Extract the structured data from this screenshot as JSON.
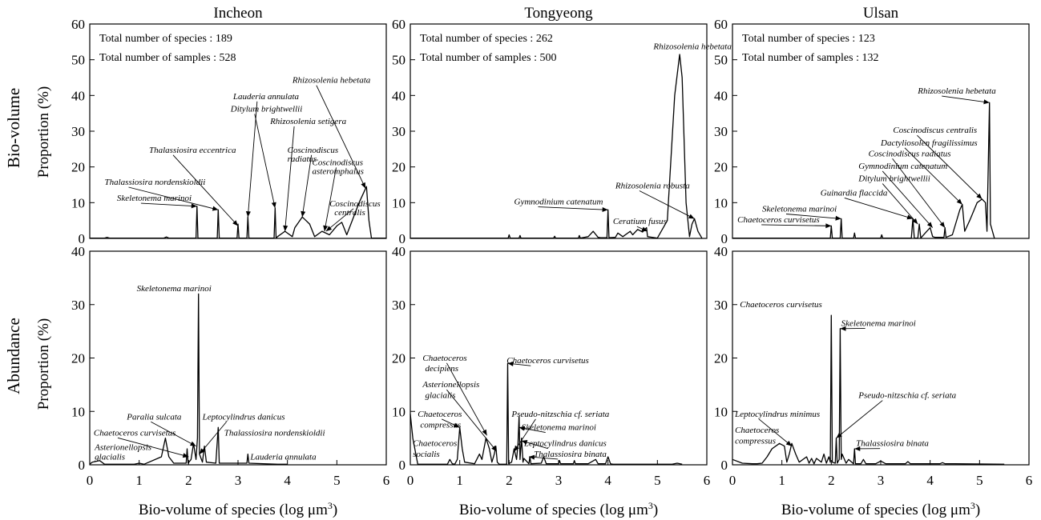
{
  "figure": {
    "row_labels": [
      "Bio-volume",
      "Abundance"
    ],
    "ylabel": "Proportion (%)",
    "xlabel_prefix": "Bio-volume of species (log μm",
    "xlabel_sup": "3",
    "xlabel_suffix": ")"
  },
  "chart_data": [
    {
      "type": "line",
      "station": "Incheon",
      "row": "Bio-volume",
      "xlim": [
        0,
        6
      ],
      "ylim": [
        0,
        60
      ],
      "xticks": [
        0,
        1,
        2,
        3,
        4,
        5,
        6
      ],
      "yticks": [
        0,
        10,
        20,
        30,
        40,
        50,
        60
      ],
      "info": [
        "Total number of species : 189",
        "Total number of samples : 528"
      ],
      "series": [
        {
          "x": [
            0,
            0.3,
            0.35,
            0.4,
            1.5,
            1.55,
            1.6,
            2.15,
            2.17,
            2.19,
            2.58,
            2.6,
            2.62,
            2.98,
            3.0,
            3.02,
            3.18,
            3.2,
            3.22,
            3.73,
            3.75,
            3.77,
            3.8,
            3.95,
            4.1,
            4.15,
            4.3,
            4.45,
            4.55,
            4.7,
            4.85,
            5.0,
            5.1,
            5.2,
            5.45,
            5.6,
            5.65,
            5.7,
            6.0
          ],
          "y": [
            0.1,
            0.1,
            0.3,
            0.1,
            0.1,
            0.4,
            0.1,
            0.1,
            9,
            0.1,
            0.1,
            8,
            0.1,
            0.1,
            4,
            0.1,
            0.1,
            6,
            0.1,
            0.1,
            8.5,
            0.1,
            0.5,
            2,
            0.5,
            3,
            6,
            4,
            0.5,
            2,
            1,
            3.5,
            4.5,
            1,
            10,
            14.5,
            5,
            0.1,
            0.1
          ]
        }
      ],
      "annotations": [
        {
          "text": "Skeletonema marinoi",
          "x": 0.55,
          "y": 10.5,
          "ax": 2.17,
          "ay": 9
        },
        {
          "text": "Thalassiosira nordenskioldii",
          "x": 0.3,
          "y": 15,
          "ax": 2.6,
          "ay": 8
        },
        {
          "text": "Thalassiosira eccentrica",
          "x": 1.2,
          "y": 24,
          "ax": 3.0,
          "ay": 3.5
        },
        {
          "text": "Lauderia annulata",
          "x": 2.9,
          "y": 39,
          "ax": 3.2,
          "ay": 6
        },
        {
          "text": "Ditylum brightwellii",
          "x": 2.85,
          "y": 35.5,
          "ax": 3.75,
          "ay": 8.5
        },
        {
          "text": "Rhizosolenia setigera",
          "x": 3.65,
          "y": 32,
          "ax": 3.95,
          "ay": 2
        },
        {
          "text": "Coscinodiscus",
          "x": 4.0,
          "y": 24,
          "ax": 4.3,
          "ay": 6
        },
        {
          "text": "radiatus",
          "x": 4.0,
          "y": 21.5
        },
        {
          "text": "Coscinodiscus",
          "x": 4.5,
          "y": 20.5,
          "ax": 4.75,
          "ay": 2
        },
        {
          "text": "asteromphalus",
          "x": 4.5,
          "y": 18
        },
        {
          "text": "Rhizosolenia hebetata",
          "x": 4.1,
          "y": 43.5,
          "ax": 5.58,
          "ay": 14
        },
        {
          "text": "Coscinodiscus",
          "x": 4.85,
          "y": 9,
          "ax": 4.78,
          "ay": 2
        },
        {
          "text": "centralis",
          "x": 4.95,
          "y": 6.5
        }
      ]
    },
    {
      "type": "line",
      "station": "Tongyeong",
      "row": "Bio-volume",
      "xlim": [
        0,
        6
      ],
      "ylim": [
        0,
        60
      ],
      "xticks": [
        0,
        1,
        2,
        3,
        4,
        5,
        6
      ],
      "yticks": [
        0,
        10,
        20,
        30,
        40,
        50,
        60
      ],
      "info": [
        "Total number of species : 262",
        "Total number of samples : 500"
      ],
      "series": [
        {
          "x": [
            0,
            1.98,
            2.0,
            2.02,
            2.2,
            2.22,
            2.24,
            2.9,
            2.92,
            2.94,
            3.4,
            3.42,
            3.44,
            3.6,
            3.7,
            3.8,
            3.85,
            3.98,
            4.0,
            4.02,
            4.15,
            4.2,
            4.3,
            4.45,
            4.5,
            4.6,
            4.7,
            4.78,
            4.8,
            5.0,
            5.2,
            5.35,
            5.45,
            5.5,
            5.58,
            5.65,
            5.7,
            5.75,
            5.82,
            5.9
          ],
          "y": [
            0.1,
            0.1,
            1,
            0.1,
            0.1,
            0.8,
            0.1,
            0.1,
            0.6,
            0.1,
            0.1,
            0.8,
            0.1,
            0.5,
            2,
            0.3,
            0.2,
            0.2,
            8,
            0.2,
            0.3,
            1.5,
            0.5,
            2,
            1,
            2.5,
            1.8,
            3,
            0.5,
            0.1,
            5,
            40,
            51.5,
            45,
            10,
            0.5,
            4,
            5.5,
            2,
            0.1
          ]
        }
      ],
      "annotations": [
        {
          "text": "Rhizosolenia hebetata",
          "x": 4.92,
          "y": 53,
          "ax": null
        },
        {
          "text": "Gymnodinium catenatum",
          "x": 2.1,
          "y": 9.5,
          "ax": 4.0,
          "ay": 8
        },
        {
          "text": "Ceratium fusus",
          "x": 4.1,
          "y": 4,
          "ax": 4.8,
          "ay": 2
        },
        {
          "text": "Rhizosolenia robusta",
          "x": 4.15,
          "y": 14,
          "ax": 5.75,
          "ay": 5.5
        }
      ]
    },
    {
      "type": "line",
      "station": "Ulsan",
      "row": "Bio-volume",
      "xlim": [
        0,
        6
      ],
      "ylim": [
        0,
        60
      ],
      "xticks": [
        0,
        1,
        2,
        3,
        4,
        5,
        6
      ],
      "yticks": [
        0,
        10,
        20,
        30,
        40,
        50,
        60
      ],
      "info": [
        "Total number of species : 123",
        "Total number of samples : 132"
      ],
      "series": [
        {
          "x": [
            0,
            1.98,
            2.0,
            2.02,
            2.18,
            2.2,
            2.22,
            2.45,
            2.47,
            2.49,
            3.0,
            3.02,
            3.04,
            3.62,
            3.65,
            3.68,
            3.75,
            3.78,
            3.81,
            3.9,
            4.0,
            4.05,
            4.1,
            4.28,
            4.3,
            4.32,
            4.45,
            4.6,
            4.65,
            4.7,
            4.8,
            4.95,
            5.05,
            5.12,
            5.15,
            5.2,
            5.22,
            5.3
          ],
          "y": [
            0.1,
            0.1,
            3.5,
            0.1,
            0.1,
            5.5,
            0.1,
            0.1,
            1.5,
            0.1,
            0.1,
            1,
            0.1,
            0.1,
            5.5,
            0.1,
            0.1,
            4,
            0.1,
            1.5,
            3,
            0.5,
            0.3,
            0.3,
            3,
            0.3,
            1,
            8,
            9.5,
            2,
            5,
            10,
            11,
            10,
            2,
            38,
            4,
            0.1
          ]
        }
      ],
      "annotations": [
        {
          "text": "Rhizosolenia hebetata",
          "x": 3.75,
          "y": 40.5,
          "ax": 5.2,
          "ay": 38
        },
        {
          "text": "Coscinodiscus centralis",
          "x": 3.25,
          "y": 29.5,
          "ax": 5.05,
          "ay": 11
        },
        {
          "text": "Dactyliosolen fragilissimus",
          "x": 3.0,
          "y": 26,
          "ax": 4.65,
          "ay": 9.5
        },
        {
          "text": "Coscinodiscus radiatus",
          "x": 2.75,
          "y": 23,
          "ax": 4.3,
          "ay": 3
        },
        {
          "text": "Gymnodinium catenatum",
          "x": 2.55,
          "y": 19.5,
          "ax": 4.05,
          "ay": 3
        },
        {
          "text": "Ditylum brightwellii",
          "x": 2.55,
          "y": 16,
          "ax": 3.75,
          "ay": 4
        },
        {
          "text": "Guinardia flaccida",
          "x": 1.78,
          "y": 12,
          "ax": 3.65,
          "ay": 5.5
        },
        {
          "text": "Skeletonema marinoi",
          "x": 0.6,
          "y": 7.5,
          "ax": 2.2,
          "ay": 5.5
        },
        {
          "text": "Chaetoceros curvisetus",
          "x": 0.1,
          "y": 4.5,
          "ax": 2.0,
          "ay": 3.5
        }
      ]
    },
    {
      "type": "line",
      "station": "Incheon",
      "row": "Abundance",
      "xlim": [
        0,
        6
      ],
      "ylim": [
        0,
        40
      ],
      "xticks": [
        0,
        1,
        2,
        3,
        4,
        5,
        6
      ],
      "yticks": [
        0,
        10,
        20,
        30,
        40
      ],
      "series": [
        {
          "x": [
            0,
            0.05,
            0.2,
            0.3,
            0.9,
            1.0,
            1.1,
            1.45,
            1.53,
            1.6,
            1.7,
            1.95,
            1.97,
            1.99,
            2.05,
            2.1,
            2.15,
            2.18,
            2.2,
            2.22,
            2.28,
            2.32,
            2.36,
            2.55,
            2.6,
            2.62,
            3.18,
            3.2,
            3.22,
            3.8,
            4.0
          ],
          "y": [
            0.1,
            0.5,
            0.8,
            0.1,
            0.1,
            0.3,
            0.1,
            1.5,
            5,
            1.5,
            0.3,
            0.3,
            3,
            0.3,
            1,
            4,
            1,
            5,
            32,
            2,
            0.5,
            3.5,
            0.5,
            0.3,
            7,
            0.3,
            0.3,
            2,
            0.3,
            0.1,
            0.1
          ]
        }
      ],
      "annotations": [
        {
          "text": "Skeletonema marinoi",
          "x": 0.95,
          "y": 32.5,
          "ax": null
        },
        {
          "text": "Paralia sulcata",
          "x": 0.75,
          "y": 8.5,
          "ax": 2.15,
          "ay": 3.5
        },
        {
          "text": "Leptocylindrus danicus",
          "x": 2.28,
          "y": 8.5,
          "ax": 2.22,
          "ay": 2
        },
        {
          "text": "Chaetoceros curvisetus",
          "x": 0.08,
          "y": 5.5,
          "ax": 2.0,
          "ay": 1.5
        },
        {
          "text": "Thalassiosira nordenskioldii",
          "x": 2.72,
          "y": 5.5,
          "ax": null
        },
        {
          "text": "Asterionellopsis",
          "x": 0.1,
          "y": 2.8,
          "ax": null
        },
        {
          "text": "glacialis",
          "x": 0.1,
          "y": 1.0,
          "ax": null
        },
        {
          "text": "Lauderia annulata",
          "x": 3.25,
          "y": 1.0,
          "ax": null
        }
      ]
    },
    {
      "type": "line",
      "station": "Tongyeong",
      "row": "Abundance",
      "xlim": [
        0,
        6
      ],
      "ylim": [
        0,
        40
      ],
      "xticks": [
        0,
        1,
        2,
        3,
        4,
        5,
        6
      ],
      "yticks": [
        0,
        10,
        20,
        30,
        40
      ],
      "series": [
        {
          "x": [
            0,
            0.05,
            0.15,
            0.75,
            0.8,
            0.85,
            0.9,
            0.95,
            1.0,
            1.05,
            1.1,
            1.3,
            1.4,
            1.45,
            1.53,
            1.6,
            1.65,
            1.7,
            1.73,
            1.76,
            1.8,
            1.95,
            1.97,
            1.99,
            2.05,
            2.08,
            2.1,
            2.15,
            2.18,
            2.2,
            2.22,
            2.25,
            2.28,
            2.3,
            2.4,
            2.42,
            2.44,
            2.65,
            2.7,
            2.75,
            3.0,
            3.02,
            3.04,
            3.3,
            3.32,
            3.34,
            3.6,
            3.75,
            3.8,
            3.95,
            4.0,
            4.05,
            4.1,
            5.3,
            5.4,
            5.5
          ],
          "y": [
            9.5,
            5,
            0.1,
            0.1,
            1,
            0.2,
            0.1,
            1,
            7,
            3,
            0.5,
            0.2,
            2,
            1,
            5,
            3,
            0.5,
            2,
            3.5,
            0.5,
            0.1,
            0.1,
            19,
            0.2,
            0.5,
            2,
            3,
            1,
            4,
            9,
            1,
            5,
            0.5,
            1.2,
            0.2,
            1.5,
            0.2,
            0.3,
            1.5,
            0.2,
            0.2,
            0.8,
            0.2,
            0.2,
            0.8,
            0.2,
            0.2,
            1,
            0.2,
            0.2,
            1.5,
            0.2,
            0.1,
            0.1,
            0.3,
            0.1
          ]
        }
      ],
      "annotations": [
        {
          "text": "Chaetoceros",
          "x": 0.25,
          "y": 19.5,
          "ax": 1.55,
          "ay": 5.5
        },
        {
          "text": "decipiens",
          "x": 0.3,
          "y": 17.5
        },
        {
          "text": "Chaetoceros curvisetus",
          "x": 1.95,
          "y": 19,
          "ax": 1.97,
          "ay": 19
        },
        {
          "text": "Asterionellopsis",
          "x": 0.25,
          "y": 14.5,
          "ax": 1.75,
          "ay": 2.5
        },
        {
          "text": "glacialis",
          "x": 0.3,
          "y": 12.5
        },
        {
          "text": "Chaetoceros",
          "x": 0.15,
          "y": 9,
          "ax": 1.0,
          "ay": 7
        },
        {
          "text": "compressus",
          "x": 0.2,
          "y": 7
        },
        {
          "text": "Pseudo-nitzschia cf. seriata",
          "x": 2.05,
          "y": 9,
          "ax": 2.1,
          "ay": 2.5
        },
        {
          "text": "Skeletonema marinoi",
          "x": 2.25,
          "y": 6.5,
          "ax": 2.2,
          "ay": 7
        },
        {
          "text": "Leptocylindrus danicus",
          "x": 2.3,
          "y": 3.5,
          "ax": 2.25,
          "ay": 4.5
        },
        {
          "text": "Chaetoceros",
          "x": 0.05,
          "y": 3.5,
          "ax": null
        },
        {
          "text": "socialis",
          "x": 0.05,
          "y": 1.5,
          "ax": null
        },
        {
          "text": "Thalassiosira binata",
          "x": 2.5,
          "y": 1.5,
          "ax": 2.4,
          "ay": 1.5
        }
      ]
    },
    {
      "type": "line",
      "station": "Ulsan",
      "row": "Abundance",
      "xlim": [
        0,
        6
      ],
      "ylim": [
        0,
        40
      ],
      "xticks": [
        0,
        1,
        2,
        3,
        4,
        5,
        6
      ],
      "yticks": [
        0,
        10,
        20,
        30,
        40
      ],
      "series": [
        {
          "x": [
            0,
            0.2,
            0.4,
            0.5,
            0.6,
            0.7,
            0.8,
            0.95,
            1.05,
            1.1,
            1.15,
            1.2,
            1.28,
            1.35,
            1.5,
            1.55,
            1.6,
            1.65,
            1.7,
            1.8,
            1.85,
            1.9,
            1.95,
            1.98,
            2.0,
            2.02,
            2.08,
            2.1,
            2.12,
            2.16,
            2.18,
            2.2,
            2.22,
            2.3,
            2.35,
            2.45,
            2.47,
            2.49,
            2.6,
            2.65,
            2.7,
            2.9,
            3.0,
            3.1,
            3.2,
            3.5,
            3.55,
            3.6,
            4.2,
            4.25,
            4.3,
            4.5,
            5.5
          ],
          "y": [
            1,
            0.3,
            0.2,
            0.2,
            0.3,
            1.5,
            3,
            4,
            3.5,
            0.5,
            2,
            4,
            2,
            0.5,
            1.5,
            0.3,
            1.2,
            0.2,
            1.2,
            0.5,
            2,
            0.3,
            1.5,
            0.5,
            28,
            0.5,
            0.3,
            5,
            0.3,
            1,
            25.5,
            1,
            2,
            0.3,
            1,
            0.2,
            3,
            0.2,
            0.2,
            1,
            0.2,
            0.2,
            0.7,
            0.2,
            0.2,
            0.2,
            0.6,
            0.2,
            0.2,
            0.4,
            0.2,
            0.2,
            0.1
          ]
        }
      ],
      "annotations": [
        {
          "text": "Chaetoceros curvisetus",
          "x": 0.15,
          "y": 29.5,
          "ax": null
        },
        {
          "text": "Skeletonema marinoi",
          "x": 2.2,
          "y": 26,
          "ax": 2.18,
          "ay": 25.5
        },
        {
          "text": "Pseudo-nitzschia cf. seriata",
          "x": 2.55,
          "y": 12.5,
          "ax": 2.1,
          "ay": 5
        },
        {
          "text": "Leptocylindrus minimus",
          "x": 0.05,
          "y": 9,
          "ax": 1.2,
          "ay": 3.5
        },
        {
          "text": "Chaetoceros",
          "x": 0.05,
          "y": 6,
          "ax": null
        },
        {
          "text": "compressus",
          "x": 0.05,
          "y": 4
        },
        {
          "text": "Thalassiosira binata",
          "x": 2.5,
          "y": 3.5,
          "ax": 2.47,
          "ay": 3
        }
      ]
    }
  ]
}
